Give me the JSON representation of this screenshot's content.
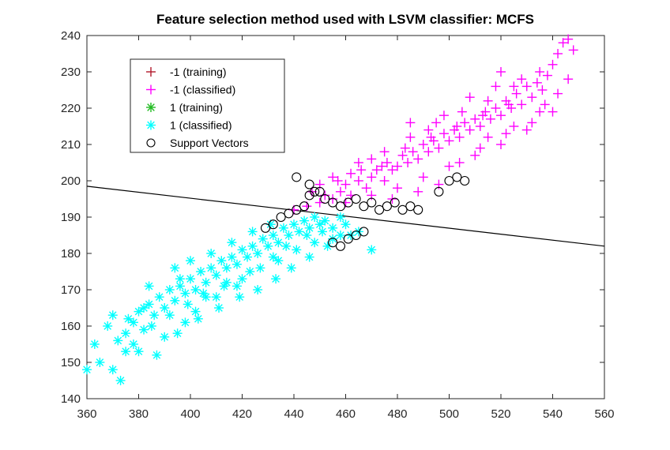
{
  "chart_data": {
    "type": "scatter",
    "title": "Feature selection method used with LSVM classifier: MCFS",
    "xlabel": "",
    "ylabel": "",
    "xlim": [
      360,
      560
    ],
    "ylim": [
      140,
      240
    ],
    "xticks": [
      360,
      380,
      400,
      420,
      440,
      460,
      480,
      500,
      520,
      540,
      560
    ],
    "yticks": [
      140,
      150,
      160,
      170,
      180,
      190,
      200,
      210,
      220,
      230,
      240
    ],
    "grid": false,
    "legend_position": "top-left",
    "legend": [
      {
        "label": "-1 (training)",
        "marker": "plus",
        "color": "#b2182b"
      },
      {
        "label": "-1 (classified)",
        "marker": "plus",
        "color": "#ff00ff"
      },
      {
        "label": "1 (training)",
        "marker": "star",
        "color": "#22bb22"
      },
      {
        "label": "1 (classified)",
        "marker": "star",
        "color": "#00ffff"
      },
      {
        "label": "Support Vectors",
        "marker": "circle",
        "color": "#000000"
      }
    ],
    "series": [
      {
        "name": "-1 (classified)",
        "marker": "plus",
        "color": "#ff00ff",
        "points": [
          [
            440,
            192
          ],
          [
            445,
            193
          ],
          [
            450,
            194
          ],
          [
            452,
            196
          ],
          [
            455,
            195
          ],
          [
            458,
            197
          ],
          [
            460,
            199
          ],
          [
            462,
            196
          ],
          [
            465,
            200
          ],
          [
            468,
            198
          ],
          [
            470,
            201
          ],
          [
            472,
            203
          ],
          [
            475,
            200
          ],
          [
            476,
            205
          ],
          [
            478,
            203
          ],
          [
            480,
            204
          ],
          [
            482,
            207
          ],
          [
            484,
            205
          ],
          [
            486,
            208
          ],
          [
            488,
            206
          ],
          [
            490,
            210
          ],
          [
            492,
            208
          ],
          [
            494,
            211
          ],
          [
            496,
            209
          ],
          [
            498,
            213
          ],
          [
            500,
            211
          ],
          [
            502,
            214
          ],
          [
            504,
            212
          ],
          [
            506,
            216
          ],
          [
            508,
            214
          ],
          [
            510,
            217
          ],
          [
            512,
            215
          ],
          [
            514,
            219
          ],
          [
            516,
            217
          ],
          [
            518,
            220
          ],
          [
            520,
            218
          ],
          [
            522,
            222
          ],
          [
            524,
            220
          ],
          [
            526,
            224
          ],
          [
            528,
            221
          ],
          [
            530,
            226
          ],
          [
            532,
            223
          ],
          [
            534,
            227
          ],
          [
            536,
            225
          ],
          [
            538,
            229
          ],
          [
            540,
            232
          ],
          [
            542,
            235
          ],
          [
            544,
            238
          ],
          [
            546,
            239
          ],
          [
            548,
            236
          ],
          [
            455,
            201
          ],
          [
            465,
            205
          ],
          [
            475,
            208
          ],
          [
            485,
            212
          ],
          [
            495,
            216
          ],
          [
            505,
            219
          ],
          [
            515,
            222
          ],
          [
            525,
            226
          ],
          [
            535,
            230
          ],
          [
            530,
            214
          ],
          [
            520,
            210
          ],
          [
            510,
            207
          ],
          [
            500,
            204
          ],
          [
            490,
            201
          ],
          [
            480,
            198
          ],
          [
            470,
            196
          ],
          [
            460,
            194
          ],
          [
            515,
            212
          ],
          [
            525,
            215
          ],
          [
            535,
            219
          ],
          [
            485,
            216
          ],
          [
            492,
            214
          ],
          [
            498,
            218
          ],
          [
            508,
            223
          ],
          [
            518,
            226
          ],
          [
            528,
            228
          ],
          [
            520,
            230
          ],
          [
            537,
            221
          ],
          [
            542,
            224
          ],
          [
            546,
            228
          ],
          [
            478,
            195
          ],
          [
            488,
            197
          ],
          [
            496,
            199
          ],
          [
            504,
            205
          ],
          [
            512,
            209
          ],
          [
            522,
            213
          ],
          [
            532,
            216
          ],
          [
            540,
            219
          ],
          [
            470,
            206
          ],
          [
            462,
            202
          ],
          [
            450,
            199
          ],
          [
            447,
            197
          ],
          [
            457,
            200
          ],
          [
            466,
            203
          ],
          [
            474,
            204
          ],
          [
            483,
            209
          ],
          [
            493,
            212
          ],
          [
            503,
            215
          ],
          [
            513,
            218
          ],
          [
            523,
            221
          ]
        ]
      },
      {
        "name": "1 (classified)",
        "marker": "star",
        "color": "#00ffff",
        "points": [
          [
            360,
            148
          ],
          [
            363,
            155
          ],
          [
            368,
            160
          ],
          [
            370,
            163
          ],
          [
            373,
            145
          ],
          [
            375,
            153
          ],
          [
            375,
            158
          ],
          [
            378,
            161
          ],
          [
            380,
            164
          ],
          [
            382,
            159
          ],
          [
            384,
            166
          ],
          [
            386,
            163
          ],
          [
            388,
            168
          ],
          [
            390,
            165
          ],
          [
            392,
            170
          ],
          [
            394,
            167
          ],
          [
            396,
            171
          ],
          [
            398,
            169
          ],
          [
            400,
            173
          ],
          [
            402,
            170
          ],
          [
            404,
            175
          ],
          [
            406,
            172
          ],
          [
            408,
            176
          ],
          [
            410,
            174
          ],
          [
            412,
            178
          ],
          [
            414,
            176
          ],
          [
            416,
            179
          ],
          [
            418,
            177
          ],
          [
            420,
            181
          ],
          [
            422,
            179
          ],
          [
            424,
            182
          ],
          [
            426,
            180
          ],
          [
            428,
            184
          ],
          [
            430,
            182
          ],
          [
            432,
            185
          ],
          [
            434,
            183
          ],
          [
            436,
            187
          ],
          [
            438,
            185
          ],
          [
            440,
            188
          ],
          [
            442,
            186
          ],
          [
            444,
            189
          ],
          [
            446,
            187
          ],
          [
            448,
            190
          ],
          [
            450,
            188
          ],
          [
            452,
            189
          ],
          [
            455,
            187
          ],
          [
            458,
            190
          ],
          [
            460,
            188
          ],
          [
            465,
            186
          ],
          [
            470,
            181
          ],
          [
            372,
            156
          ],
          [
            378,
            155
          ],
          [
            385,
            160
          ],
          [
            392,
            163
          ],
          [
            399,
            166
          ],
          [
            406,
            168
          ],
          [
            413,
            171
          ],
          [
            420,
            173
          ],
          [
            427,
            176
          ],
          [
            434,
            178
          ],
          [
            441,
            181
          ],
          [
            448,
            183
          ],
          [
            455,
            184
          ],
          [
            462,
            185
          ],
          [
            394,
            176
          ],
          [
            400,
            178
          ],
          [
            408,
            180
          ],
          [
            416,
            183
          ],
          [
            424,
            186
          ],
          [
            431,
            188
          ],
          [
            387,
            152
          ],
          [
            395,
            158
          ],
          [
            403,
            162
          ],
          [
            411,
            165
          ],
          [
            419,
            168
          ],
          [
            426,
            170
          ],
          [
            433,
            173
          ],
          [
            439,
            176
          ],
          [
            446,
            179
          ],
          [
            453,
            182
          ],
          [
            380,
            153
          ],
          [
            390,
            157
          ],
          [
            398,
            161
          ],
          [
            376,
            162
          ],
          [
            384,
            171
          ],
          [
            396,
            173
          ],
          [
            405,
            169
          ],
          [
            414,
            172
          ],
          [
            423,
            175
          ],
          [
            432,
            179
          ],
          [
            365,
            150
          ],
          [
            370,
            148
          ],
          [
            382,
            165
          ],
          [
            402,
            164
          ],
          [
            410,
            168
          ],
          [
            418,
            171
          ],
          [
            437,
            182
          ],
          [
            445,
            185
          ],
          [
            451,
            186
          ],
          [
            458,
            185
          ]
        ]
      },
      {
        "name": "Support Vectors",
        "marker": "circle",
        "color": "#000000",
        "points": [
          [
            429,
            187
          ],
          [
            432,
            188
          ],
          [
            435,
            190
          ],
          [
            438,
            191
          ],
          [
            441,
            192
          ],
          [
            444,
            193
          ],
          [
            446,
            196
          ],
          [
            448,
            197
          ],
          [
            450,
            197
          ],
          [
            452,
            195
          ],
          [
            455,
            194
          ],
          [
            458,
            193
          ],
          [
            461,
            194
          ],
          [
            464,
            195
          ],
          [
            467,
            193
          ],
          [
            470,
            194
          ],
          [
            473,
            192
          ],
          [
            476,
            193
          ],
          [
            479,
            194
          ],
          [
            482,
            192
          ],
          [
            485,
            193
          ],
          [
            488,
            192
          ],
          [
            455,
            183
          ],
          [
            458,
            182
          ],
          [
            461,
            184
          ],
          [
            464,
            185
          ],
          [
            467,
            186
          ],
          [
            496,
            197
          ],
          [
            500,
            200
          ],
          [
            503,
            201
          ],
          [
            506,
            200
          ],
          [
            441,
            201
          ],
          [
            446,
            199
          ]
        ]
      }
    ],
    "decision_boundary": {
      "type": "line",
      "points": [
        [
          360,
          198.5
        ],
        [
          560,
          182
        ]
      ],
      "color": "#000000"
    }
  }
}
